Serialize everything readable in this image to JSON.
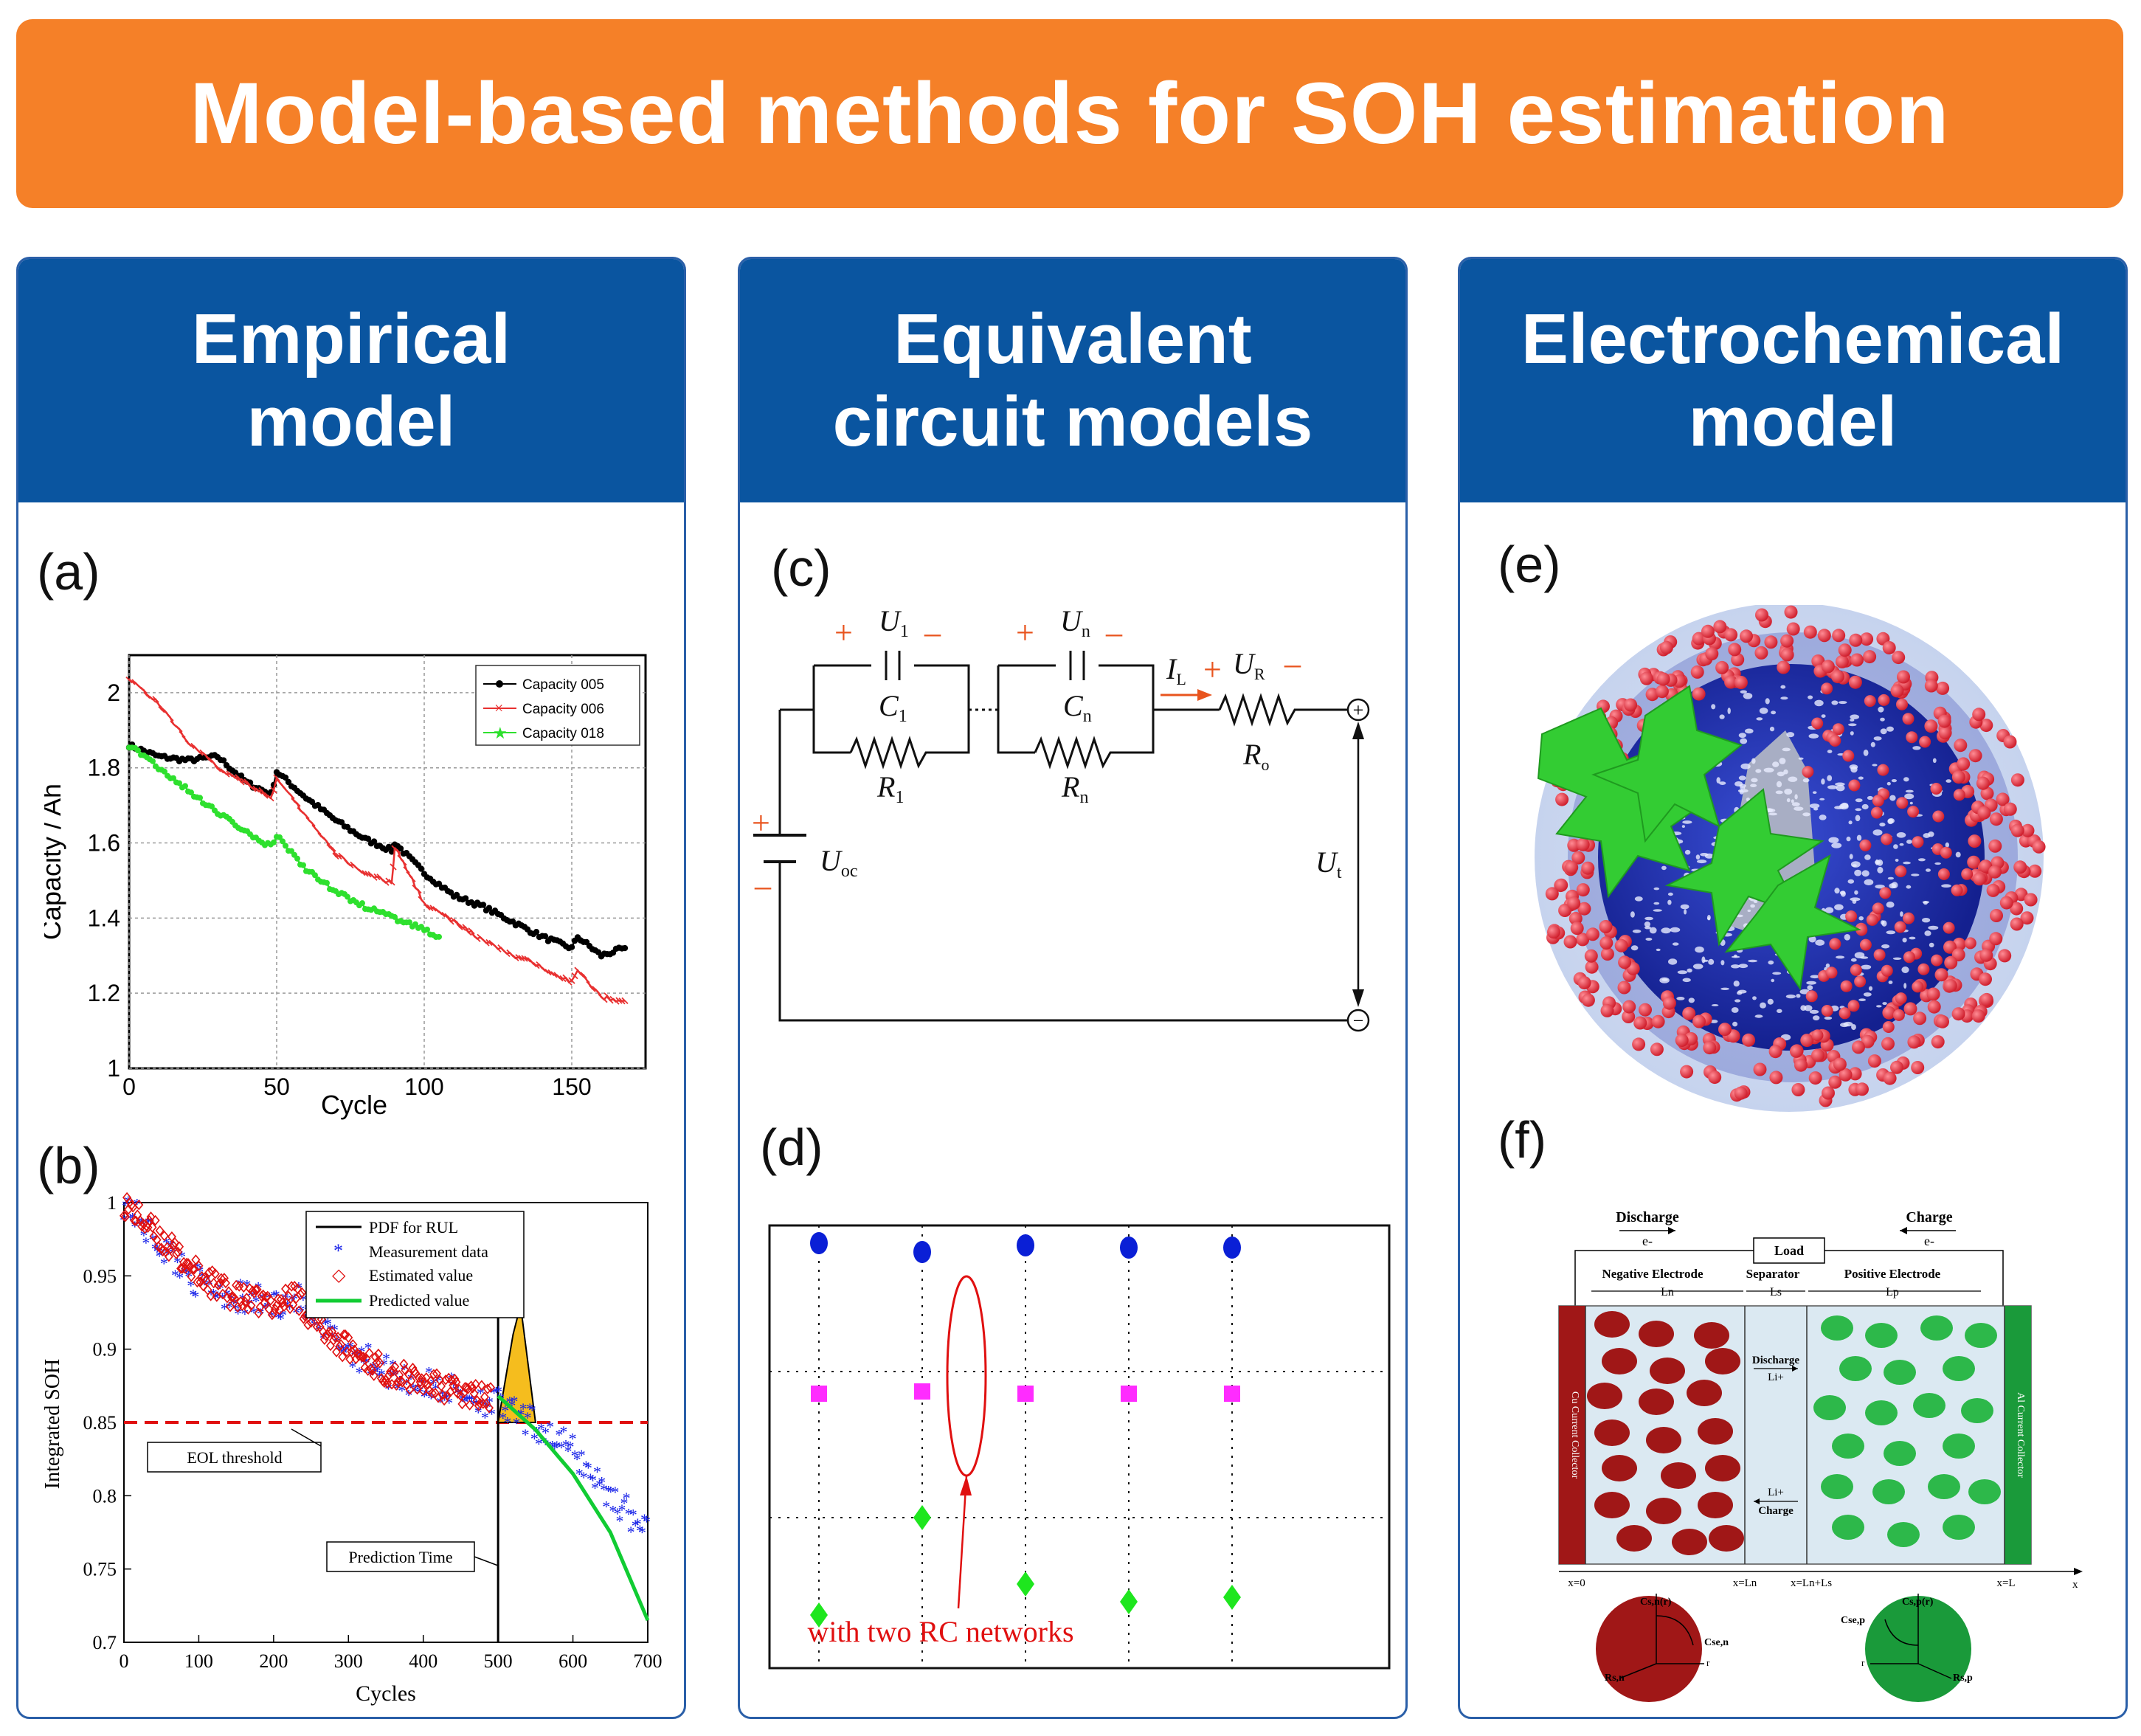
{
  "title": "Model-based methods for SOH estimation",
  "columns": [
    {
      "line1": "Empirical",
      "line2": "model"
    },
    {
      "line1": "Equivalent",
      "line2": "circuit models"
    },
    {
      "line1": "Electrochemical",
      "line2": "model"
    }
  ],
  "panel_labels": {
    "a": "(a)",
    "b": "(b)",
    "c": "(c)",
    "d": "(d)",
    "e": "(e)",
    "f": "(f)"
  },
  "chart_data": [
    {
      "id": "a",
      "type": "line",
      "xlabel": "Cycle",
      "ylabel": "Capacity / Ah",
      "xlim": [
        0,
        175
      ],
      "ylim": [
        1,
        2.1
      ],
      "xticks": [
        "0",
        "50",
        "100",
        "150"
      ],
      "yticks": [
        "1",
        "1.2",
        "1.4",
        "1.6",
        "1.8",
        "2"
      ],
      "grid": true,
      "legend_position": "top-right",
      "series": [
        {
          "name": "Capacity 005",
          "color": "#000000",
          "x": [
            0,
            10,
            20,
            30,
            40,
            48,
            50,
            60,
            70,
            80,
            89,
            90,
            100,
            110,
            120,
            130,
            140,
            150,
            152,
            160,
            168
          ],
          "y": [
            1.86,
            1.83,
            1.82,
            1.83,
            1.76,
            1.73,
            1.79,
            1.72,
            1.66,
            1.61,
            1.58,
            1.6,
            1.52,
            1.46,
            1.43,
            1.39,
            1.35,
            1.32,
            1.35,
            1.3,
            1.32
          ]
        },
        {
          "name": "Capacity 006",
          "color": "#e83030",
          "x": [
            0,
            10,
            20,
            30,
            40,
            48,
            50,
            60,
            70,
            80,
            89,
            90,
            100,
            110,
            120,
            130,
            140,
            150,
            152,
            160,
            168
          ],
          "y": [
            2.04,
            1.97,
            1.87,
            1.8,
            1.76,
            1.72,
            1.77,
            1.67,
            1.57,
            1.52,
            1.49,
            1.59,
            1.44,
            1.39,
            1.34,
            1.3,
            1.27,
            1.23,
            1.26,
            1.19,
            1.18
          ]
        },
        {
          "name": "Capacity 018",
          "color": "#2ee02e",
          "x": [
            0,
            10,
            20,
            30,
            40,
            48,
            50,
            60,
            70,
            80,
            90,
            100,
            105
          ],
          "y": [
            1.86,
            1.8,
            1.74,
            1.68,
            1.63,
            1.59,
            1.62,
            1.53,
            1.47,
            1.43,
            1.4,
            1.37,
            1.35
          ]
        }
      ]
    },
    {
      "id": "b",
      "type": "scatter",
      "xlabel": "Cycles",
      "ylabel": "Integrated SOH",
      "xlim": [
        0,
        700
      ],
      "ylim": [
        0.7,
        1.0
      ],
      "xticks": [
        "0",
        "100",
        "200",
        "300",
        "400",
        "500",
        "600",
        "700"
      ],
      "yticks": [
        "0.7",
        "0.75",
        "0.8",
        "0.85",
        "0.9",
        "0.95",
        "1"
      ],
      "legend_position": "top-right",
      "legend": [
        "PDF for RUL",
        "Measurement data",
        "Estimated value",
        "Predicted value"
      ],
      "eol_threshold": 0.85,
      "eol_label": "EOL threshold",
      "prediction_time": 500,
      "prediction_label": "Prediction Time",
      "measurement": {
        "x": [
          0,
          50,
          100,
          150,
          200,
          230,
          260,
          300,
          350,
          400,
          450,
          500,
          520,
          560,
          600,
          650,
          700
        ],
        "y": [
          1.0,
          0.97,
          0.945,
          0.935,
          0.93,
          0.935,
          0.915,
          0.9,
          0.885,
          0.875,
          0.87,
          0.862,
          0.855,
          0.845,
          0.83,
          0.8,
          0.775
        ]
      },
      "estimated": {
        "x": [
          0,
          50,
          100,
          150,
          200,
          230,
          260,
          300,
          350,
          400,
          450,
          490
        ],
        "y": [
          1.0,
          0.975,
          0.95,
          0.935,
          0.93,
          0.937,
          0.915,
          0.9,
          0.885,
          0.877,
          0.87,
          0.866
        ]
      },
      "predicted": {
        "x": [
          500,
          550,
          600,
          650,
          700
        ],
        "y": [
          0.868,
          0.845,
          0.815,
          0.775,
          0.715
        ]
      },
      "pdf": {
        "x": [
          500,
          510,
          520,
          530,
          540,
          550
        ],
        "y": [
          0.85,
          0.88,
          0.91,
          0.93,
          0.89,
          0.85
        ]
      }
    },
    {
      "id": "d",
      "type": "scatter",
      "grid": true,
      "annotation": "with two RC networks",
      "series": [
        {
          "name": "blue",
          "color": "#0a1fd6",
          "x": [
            1,
            2,
            3,
            4,
            5
          ],
          "y": [
            0.96,
            0.94,
            0.955,
            0.95,
            0.95
          ]
        },
        {
          "name": "magenta",
          "color": "#ff2cff",
          "x": [
            1,
            2,
            3,
            4,
            5
          ],
          "y": [
            0.62,
            0.625,
            0.62,
            0.62,
            0.62
          ]
        },
        {
          "name": "green",
          "color": "#1ee61e",
          "x": [
            1,
            2,
            3,
            4,
            5
          ],
          "y": [
            0.12,
            0.34,
            0.19,
            0.15,
            0.16
          ]
        }
      ]
    }
  ],
  "circuit": {
    "u1": "U",
    "u1_sub": "1",
    "un": "U",
    "un_sub": "n",
    "c1": "C",
    "c1_sub": "1",
    "cn": "C",
    "cn_sub": "n",
    "r1": "R",
    "r1_sub": "1",
    "rn": "R",
    "rn_sub": "n",
    "il": "I",
    "il_sub": "L",
    "ur": "U",
    "ur_sub": "R",
    "ro": "R",
    "ro_sub": "o",
    "uoc": "U",
    "uoc_sub": "oc",
    "ut": "U",
    "ut_sub": "t",
    "plus": "+",
    "minus": "–",
    "pos_terminal": "+",
    "neg_terminal": "−"
  },
  "cell_diagram": {
    "discharge": "Discharge",
    "charge": "Charge",
    "electron": "e-",
    "load": "Load",
    "neg_electrode": "Negative Electrode",
    "separator": "Separator",
    "pos_electrode": "Positive Electrode",
    "ln": "Ln",
    "ls": "Ls",
    "lp": "Lp",
    "cu_collector": "Cu Current Collector",
    "al_collector": "Al Current Collector",
    "discharge_li": "Discharge",
    "li_plus": "Li+",
    "charge_li": "Charge",
    "x0": "x=0",
    "xln": "x=Ln",
    "xlnls": "x=Ln+Ls",
    "xl": "x=L",
    "x": "x",
    "csn": "Cs,n(r)",
    "csen": "Cse,n",
    "rsn": "Rs,n",
    "r": "r",
    "csp": "Cs,p(r)",
    "csep": "Cse,p",
    "rsp": "Rs,p"
  }
}
